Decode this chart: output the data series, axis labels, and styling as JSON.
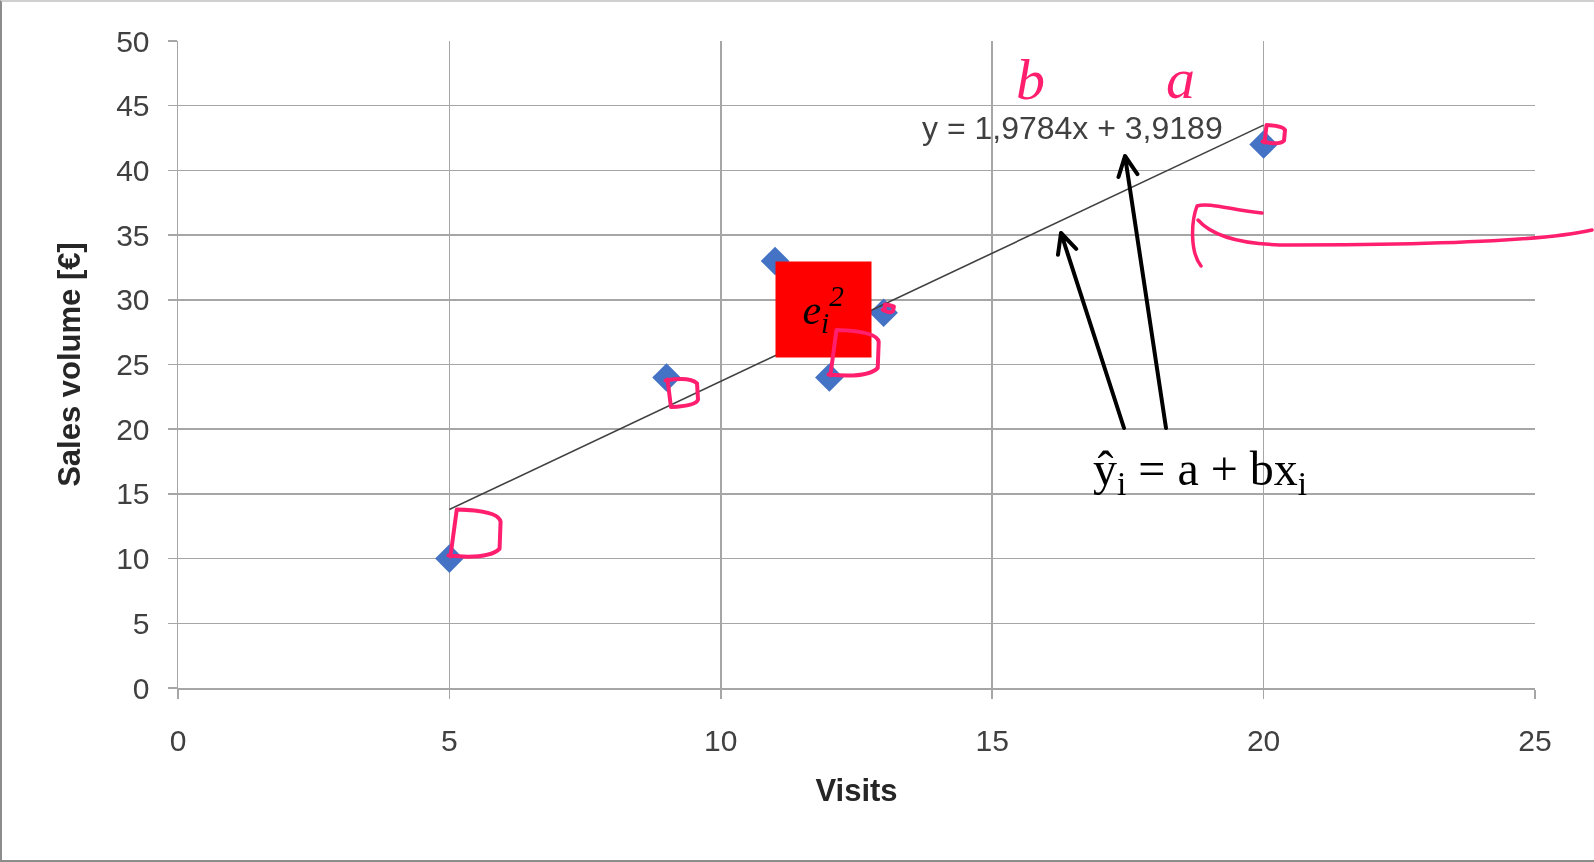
{
  "chart_data": {
    "type": "scatter",
    "xlabel": "Visits",
    "ylabel": "Sales volume [€]",
    "xlim": [
      0,
      25
    ],
    "xticks": [
      0,
      5,
      10,
      15,
      20,
      25
    ],
    "ylim": [
      0,
      50
    ],
    "yticks": [
      0,
      5,
      10,
      15,
      20,
      25,
      30,
      35,
      40,
      45,
      50
    ],
    "grid": true,
    "marker": "diamond",
    "line_style": "solid",
    "series": [
      {
        "color": "#4472c4",
        "x": [
          5,
          9,
          11,
          12,
          13,
          20
        ],
        "values": [
          10,
          24,
          33,
          24,
          29,
          42
        ]
      },
      {
        "type": "line",
        "marker": "none",
        "color": "#404040",
        "x": [
          5,
          20
        ],
        "values": [
          13.8,
          43.5
        ]
      }
    ],
    "annotations": [
      "y = 1,9784x + 3,9189",
      "b",
      "a",
      "ŷ$_{i}$ = a + bx$_{i}$",
      {
        "text": "e$_{i}$$^{2}$",
        "x": 11,
        "y": 33
      }
    ]
  }
}
